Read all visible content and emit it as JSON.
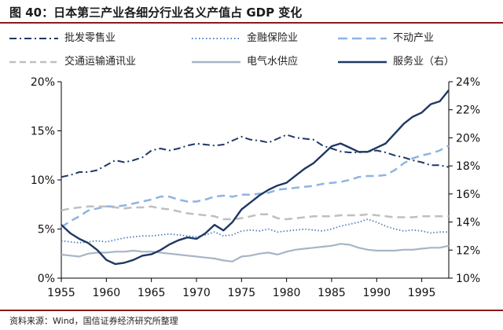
{
  "header": {
    "title": "图 40：日本第三产业各细分行业名义产值占 GDP 变化"
  },
  "footer": {
    "source": "资料来源：Wind，国信证券经济研究所整理"
  },
  "chart_data": {
    "type": "line",
    "title": "",
    "xlabel": "",
    "ylabel": "",
    "xlim": [
      1955,
      1998
    ],
    "xticks": [
      "1955",
      "1960",
      "1965",
      "1970",
      "1975",
      "1980",
      "1985",
      "1990",
      "1995"
    ],
    "ylim_left": [
      0,
      20
    ],
    "yticks_left": [
      "0%",
      "5%",
      "10%",
      "15%",
      "20%"
    ],
    "ylim_right": [
      10,
      24
    ],
    "yticks_right": [
      "10%",
      "12%",
      "14%",
      "16%",
      "18%",
      "20%",
      "22%",
      "24%"
    ],
    "grid": false,
    "legend_position": "top",
    "series": [
      {
        "name": "批发零售业",
        "axis": "left",
        "color": "#1f3864",
        "style": "dashdot",
        "x": [
          1955,
          1956,
          1957,
          1958,
          1959,
          1960,
          1961,
          1962,
          1963,
          1964,
          1965,
          1966,
          1967,
          1968,
          1969,
          1970,
          1971,
          1972,
          1973,
          1974,
          1975,
          1976,
          1977,
          1978,
          1979,
          1980,
          1981,
          1982,
          1983,
          1984,
          1985,
          1986,
          1987,
          1988,
          1989,
          1990,
          1991,
          1992,
          1993,
          1994,
          1995,
          1996,
          1997,
          1998
        ],
        "values": [
          10.3,
          10.5,
          10.8,
          10.8,
          11.0,
          11.5,
          12.0,
          11.8,
          12.0,
          12.3,
          13.0,
          13.2,
          13.0,
          13.2,
          13.5,
          13.7,
          13.6,
          13.5,
          13.6,
          14.0,
          14.4,
          14.1,
          14.0,
          13.8,
          14.2,
          14.6,
          14.3,
          14.2,
          14.1,
          13.5,
          13.2,
          12.9,
          12.8,
          12.8,
          12.9,
          13.0,
          12.8,
          12.5,
          12.3,
          12.0,
          11.8,
          11.5,
          11.5,
          11.3
        ]
      },
      {
        "name": "金融保险业",
        "axis": "left",
        "color": "#4f81bd",
        "style": "dotted",
        "x": [
          1955,
          1956,
          1957,
          1958,
          1959,
          1960,
          1961,
          1962,
          1963,
          1964,
          1965,
          1966,
          1967,
          1968,
          1969,
          1970,
          1971,
          1972,
          1973,
          1974,
          1975,
          1976,
          1977,
          1978,
          1979,
          1980,
          1981,
          1982,
          1983,
          1984,
          1985,
          1986,
          1987,
          1988,
          1989,
          1990,
          1991,
          1992,
          1993,
          1994,
          1995,
          1996,
          1997,
          1998
        ],
        "values": [
          3.8,
          3.7,
          3.6,
          3.7,
          3.8,
          3.7,
          3.9,
          4.1,
          4.2,
          4.3,
          4.3,
          4.4,
          4.5,
          4.4,
          4.3,
          4.2,
          4.4,
          4.7,
          4.3,
          4.4,
          4.8,
          4.9,
          4.8,
          5.0,
          4.7,
          4.8,
          4.9,
          5.0,
          4.9,
          4.8,
          5.0,
          5.3,
          5.5,
          5.7,
          6.0,
          5.7,
          5.3,
          5.0,
          4.8,
          4.9,
          4.8,
          4.6,
          4.7,
          4.7
        ]
      },
      {
        "name": "不动产业",
        "axis": "left",
        "color": "#8eb4e3",
        "style": "dashed",
        "x": [
          1955,
          1956,
          1957,
          1958,
          1959,
          1960,
          1961,
          1962,
          1963,
          1964,
          1965,
          1966,
          1967,
          1968,
          1969,
          1970,
          1971,
          1972,
          1973,
          1974,
          1975,
          1976,
          1977,
          1978,
          1979,
          1980,
          1981,
          1982,
          1983,
          1984,
          1985,
          1986,
          1987,
          1988,
          1989,
          1990,
          1991,
          1992,
          1993,
          1994,
          1995,
          1996,
          1997,
          1998
        ],
        "values": [
          5.2,
          5.8,
          6.3,
          6.9,
          7.1,
          7.3,
          7.3,
          7.4,
          7.6,
          7.8,
          8.0,
          8.3,
          8.3,
          8.0,
          7.8,
          7.8,
          8.0,
          8.3,
          8.4,
          8.3,
          8.5,
          8.5,
          8.6,
          8.7,
          9.0,
          9.1,
          9.2,
          9.3,
          9.4,
          9.6,
          9.7,
          9.8,
          10.0,
          10.3,
          10.4,
          10.4,
          10.5,
          11.0,
          11.7,
          12.2,
          12.5,
          12.7,
          13.0,
          13.5
        ]
      },
      {
        "name": "交通运输通讯业",
        "axis": "left",
        "color": "#bfbfbf",
        "style": "dashed",
        "x": [
          1955,
          1956,
          1957,
          1958,
          1959,
          1960,
          1961,
          1962,
          1963,
          1964,
          1965,
          1966,
          1967,
          1968,
          1969,
          1970,
          1971,
          1972,
          1973,
          1974,
          1975,
          1976,
          1977,
          1978,
          1979,
          1980,
          1981,
          1982,
          1983,
          1984,
          1985,
          1986,
          1987,
          1988,
          1989,
          1990,
          1991,
          1992,
          1993,
          1994,
          1995,
          1996,
          1997,
          1998
        ],
        "values": [
          6.9,
          7.1,
          7.2,
          7.3,
          7.3,
          7.3,
          7.2,
          7.1,
          7.2,
          7.2,
          7.3,
          7.1,
          7.0,
          6.8,
          6.6,
          6.5,
          6.4,
          6.3,
          6.0,
          6.0,
          6.1,
          6.3,
          6.5,
          6.5,
          6.1,
          6.0,
          6.1,
          6.2,
          6.3,
          6.3,
          6.3,
          6.4,
          6.4,
          6.4,
          6.5,
          6.4,
          6.3,
          6.2,
          6.2,
          6.2,
          6.3,
          6.3,
          6.3,
          6.3
        ]
      },
      {
        "name": "电气水供应",
        "axis": "left",
        "color": "#a6b5c6",
        "style": "solid",
        "x": [
          1955,
          1956,
          1957,
          1958,
          1959,
          1960,
          1961,
          1962,
          1963,
          1964,
          1965,
          1966,
          1967,
          1968,
          1969,
          1970,
          1971,
          1972,
          1973,
          1974,
          1975,
          1976,
          1977,
          1978,
          1979,
          1980,
          1981,
          1982,
          1983,
          1984,
          1985,
          1986,
          1987,
          1988,
          1989,
          1990,
          1991,
          1992,
          1993,
          1994,
          1995,
          1996,
          1997,
          1998
        ],
        "values": [
          2.4,
          2.3,
          2.2,
          2.5,
          2.6,
          2.6,
          2.7,
          2.7,
          2.8,
          2.7,
          2.7,
          2.6,
          2.5,
          2.4,
          2.3,
          2.2,
          2.1,
          2.0,
          1.8,
          1.7,
          2.2,
          2.3,
          2.5,
          2.6,
          2.4,
          2.7,
          2.9,
          3.0,
          3.1,
          3.2,
          3.3,
          3.5,
          3.4,
          3.1,
          2.9,
          2.8,
          2.8,
          2.8,
          2.9,
          2.9,
          3.0,
          3.1,
          3.1,
          3.3
        ]
      },
      {
        "name": "服务业（右）",
        "axis": "right",
        "color": "#1f3864",
        "style": "solid-thick",
        "x": [
          1955,
          1956,
          1957,
          1958,
          1959,
          1960,
          1961,
          1962,
          1963,
          1964,
          1965,
          1966,
          1967,
          1968,
          1969,
          1970,
          1971,
          1972,
          1973,
          1974,
          1975,
          1976,
          1977,
          1978,
          1979,
          1980,
          1981,
          1982,
          1983,
          1984,
          1985,
          1986,
          1987,
          1988,
          1989,
          1990,
          1991,
          1992,
          1993,
          1994,
          1995,
          1996,
          1997,
          1998
        ],
        "values": [
          13.8,
          13.2,
          12.8,
          12.5,
          12.0,
          11.3,
          11.0,
          11.1,
          11.3,
          11.6,
          11.7,
          12.0,
          12.4,
          12.7,
          12.9,
          12.8,
          13.2,
          13.8,
          13.4,
          14.0,
          14.9,
          15.4,
          15.9,
          16.3,
          16.6,
          16.8,
          17.3,
          17.8,
          18.2,
          18.8,
          19.4,
          19.6,
          19.3,
          19.0,
          19.0,
          19.3,
          19.6,
          20.3,
          21.0,
          21.5,
          21.8,
          22.4,
          22.6,
          23.4
        ]
      }
    ]
  }
}
